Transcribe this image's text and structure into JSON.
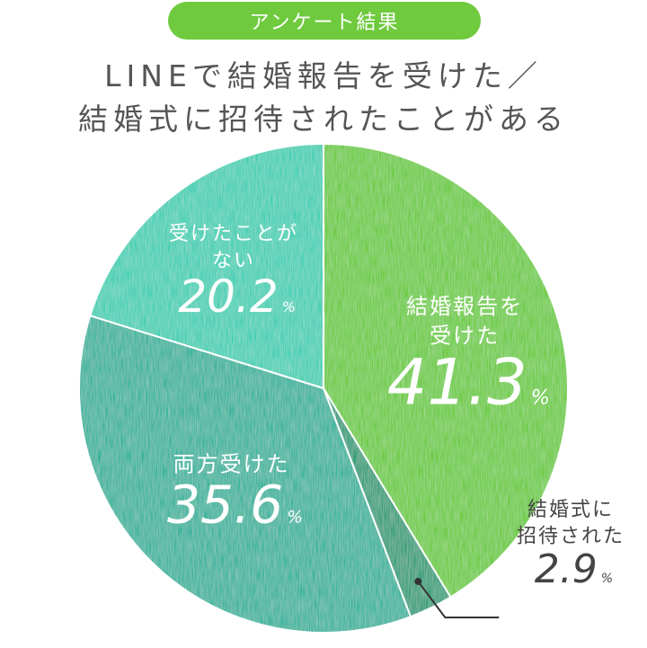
{
  "badge": "アンケート結果",
  "title_line1": "LINEで結婚報告を受けた／",
  "title_line2": "結婚式に招待されたことがある",
  "colors": {
    "badge": "#6fca3e",
    "title": "#555555",
    "slice_green": "#6ccb3f",
    "slice_dark": "#2e9e7a",
    "slice_teal": "#35b39c",
    "slice_aqua": "#3fcfb3",
    "callout_text": "#444444"
  },
  "chart_data": {
    "type": "pie",
    "title": "LINEで結婚報告を受けた／結婚式に招待されたことがある",
    "unit": "%",
    "slices": [
      {
        "label_lines": [
          "結婚報告を",
          "受けた"
        ],
        "value": 41.3,
        "value_text": "41.3",
        "color": "#6ccb3f"
      },
      {
        "label_lines": [
          "結婚式に",
          "招待された"
        ],
        "value": 2.9,
        "value_text": "2.9",
        "color": "#2e9e7a"
      },
      {
        "label_lines": [
          "両方受けた"
        ],
        "value": 35.6,
        "value_text": "35.6",
        "color": "#35b39c"
      },
      {
        "label_lines": [
          "受けたことが",
          "ない"
        ],
        "value": 20.2,
        "value_text": "20.2",
        "color": "#3fcfb3"
      }
    ]
  }
}
